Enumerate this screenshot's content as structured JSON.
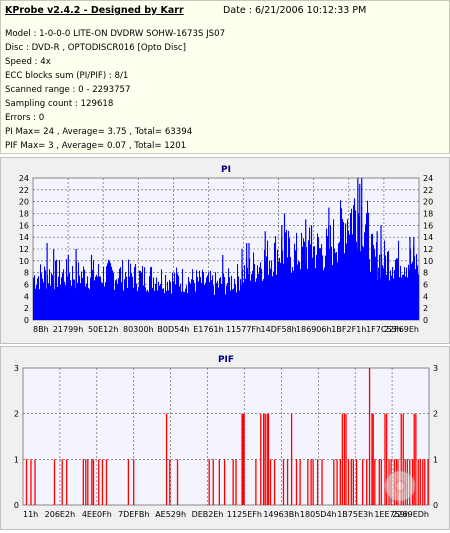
{
  "header": {
    "app_title": "KProbe v2.4.2 - Designed by Karr",
    "date": "Date : 6/21/2006 10:12:33 PM",
    "lines": [
      "Model : 1-0-0-0 LITE-ON DVDRW SOHW-1673S JS07",
      "Disc : DVD-R , OPTODISCR016 [Opto Disc]",
      "Speed : 4x",
      "ECC blocks sum (PI/PIF) : 8/1",
      "Scanned range : 0 - 2293757",
      "Sampling count : 129618",
      "Errors : 0",
      "PI Max= 24 , Average= 3.75 , Total= 63394",
      "PIF Max= 3 , Average= 0.07 , Total= 1201"
    ]
  },
  "chart_data": [
    {
      "type": "bar",
      "title": "PI",
      "ylim": [
        0,
        24
      ],
      "yticks": [
        0,
        2,
        4,
        6,
        8,
        10,
        12,
        14,
        16,
        18,
        20,
        22,
        24
      ],
      "xticks": [
        "8Bh",
        "21799h",
        "50E12h",
        "80300h",
        "B0D54h",
        "E1761h",
        "11577Fh",
        "14DF58h",
        "186906h",
        "1BF2F1h",
        "1F7C53h",
        "22F69Eh"
      ],
      "grid": true,
      "color": "#0000ff",
      "envelope": [
        [
          0,
          8.5
        ],
        [
          0.04,
          9
        ],
        [
          0.08,
          9
        ],
        [
          0.12,
          9
        ],
        [
          0.16,
          9
        ],
        [
          0.2,
          9
        ],
        [
          0.24,
          9
        ],
        [
          0.28,
          8.5
        ],
        [
          0.32,
          8.5
        ],
        [
          0.36,
          8
        ],
        [
          0.4,
          8
        ],
        [
          0.44,
          7.5
        ],
        [
          0.48,
          7
        ],
        [
          0.52,
          8
        ],
        [
          0.56,
          10
        ],
        [
          0.6,
          12
        ],
        [
          0.64,
          14
        ],
        [
          0.68,
          13
        ],
        [
          0.72,
          14
        ],
        [
          0.76,
          14
        ],
        [
          0.79,
          17
        ],
        [
          0.81,
          20
        ],
        [
          0.835,
          22
        ],
        [
          0.86,
          20
        ],
        [
          0.88,
          12
        ],
        [
          0.92,
          12
        ],
        [
          0.96,
          12
        ],
        [
          1.0,
          11
        ]
      ],
      "peaks": [
        [
          0.035,
          13
        ],
        [
          0.052,
          12
        ],
        [
          0.09,
          11
        ],
        [
          0.11,
          12
        ],
        [
          0.15,
          11
        ],
        [
          0.49,
          11
        ],
        [
          0.54,
          12
        ],
        [
          0.552,
          13
        ],
        [
          0.558,
          13
        ],
        [
          0.6,
          15
        ],
        [
          0.643,
          16
        ],
        [
          0.65,
          18
        ],
        [
          0.705,
          17
        ],
        [
          0.72,
          16
        ],
        [
          0.765,
          19
        ],
        [
          0.84,
          24
        ],
        [
          0.845,
          23
        ],
        [
          0.85,
          24
        ],
        [
          0.89,
          15
        ],
        [
          0.9,
          16
        ],
        [
          0.975,
          14
        ],
        [
          0.985,
          14
        ]
      ]
    },
    {
      "type": "bar",
      "title": "PIF",
      "ylim": [
        0,
        3
      ],
      "yticks": [
        0,
        1,
        2,
        3
      ],
      "xticks": [
        "11h",
        "206E2h",
        "4EE0Fh",
        "7DEFBh",
        "AE529h",
        "DEB2Eh",
        "1125EFh",
        "14963Bh",
        "1805D4h",
        "1B75E3h",
        "1EE759h",
        "2269EDh"
      ],
      "grid": true,
      "color": "#ff0000",
      "bars": [
        [
          0.007,
          1
        ],
        [
          0.018,
          1
        ],
        [
          0.028,
          1
        ],
        [
          0.076,
          1
        ],
        [
          0.095,
          1
        ],
        [
          0.106,
          1
        ],
        [
          0.147,
          1
        ],
        [
          0.153,
          1
        ],
        [
          0.158,
          1
        ],
        [
          0.168,
          1
        ],
        [
          0.172,
          1
        ],
        [
          0.185,
          1
        ],
        [
          0.194,
          1
        ],
        [
          0.204,
          1
        ],
        [
          0.258,
          1
        ],
        [
          0.271,
          1
        ],
        [
          0.352,
          2
        ],
        [
          0.36,
          1
        ],
        [
          0.379,
          1
        ],
        [
          0.457,
          1
        ],
        [
          0.467,
          1
        ],
        [
          0.482,
          1
        ],
        [
          0.495,
          1
        ],
        [
          0.516,
          1
        ],
        [
          0.523,
          1
        ],
        [
          0.538,
          2
        ],
        [
          0.54,
          2
        ],
        [
          0.543,
          2
        ],
        [
          0.572,
          1
        ],
        [
          0.584,
          2
        ],
        [
          0.591,
          2
        ],
        [
          0.595,
          2
        ],
        [
          0.6,
          2
        ],
        [
          0.603,
          2
        ],
        [
          0.608,
          1
        ],
        [
          0.618,
          1
        ],
        [
          0.64,
          1
        ],
        [
          0.65,
          1
        ],
        [
          0.66,
          2
        ],
        [
          0.672,
          1
        ],
        [
          0.681,
          1
        ],
        [
          0.7,
          1
        ],
        [
          0.708,
          1
        ],
        [
          0.713,
          1
        ],
        [
          0.724,
          1
        ],
        [
          0.735,
          1
        ],
        [
          0.764,
          1
        ],
        [
          0.772,
          1
        ],
        [
          0.78,
          1
        ],
        [
          0.785,
          2
        ],
        [
          0.79,
          2
        ],
        [
          0.794,
          2
        ],
        [
          0.8,
          1
        ],
        [
          0.807,
          1
        ],
        [
          0.812,
          1
        ],
        [
          0.82,
          1
        ],
        [
          0.835,
          1
        ],
        [
          0.845,
          1
        ],
        [
          0.852,
          3
        ],
        [
          0.858,
          2
        ],
        [
          0.861,
          2
        ],
        [
          0.865,
          1
        ],
        [
          0.876,
          1
        ],
        [
          0.881,
          1
        ],
        [
          0.89,
          2
        ],
        [
          0.894,
          2
        ],
        [
          0.9,
          1
        ],
        [
          0.905,
          1
        ],
        [
          0.913,
          1
        ],
        [
          0.918,
          1
        ],
        [
          0.922,
          1
        ],
        [
          0.93,
          2
        ],
        [
          0.935,
          2
        ],
        [
          0.94,
          1
        ],
        [
          0.945,
          1
        ],
        [
          0.951,
          1
        ],
        [
          0.958,
          1
        ],
        [
          0.962,
          2
        ],
        [
          0.966,
          2
        ],
        [
          0.972,
          1
        ],
        [
          0.977,
          1
        ],
        [
          0.983,
          1
        ],
        [
          0.988,
          1
        ],
        [
          0.996,
          1
        ]
      ]
    }
  ]
}
